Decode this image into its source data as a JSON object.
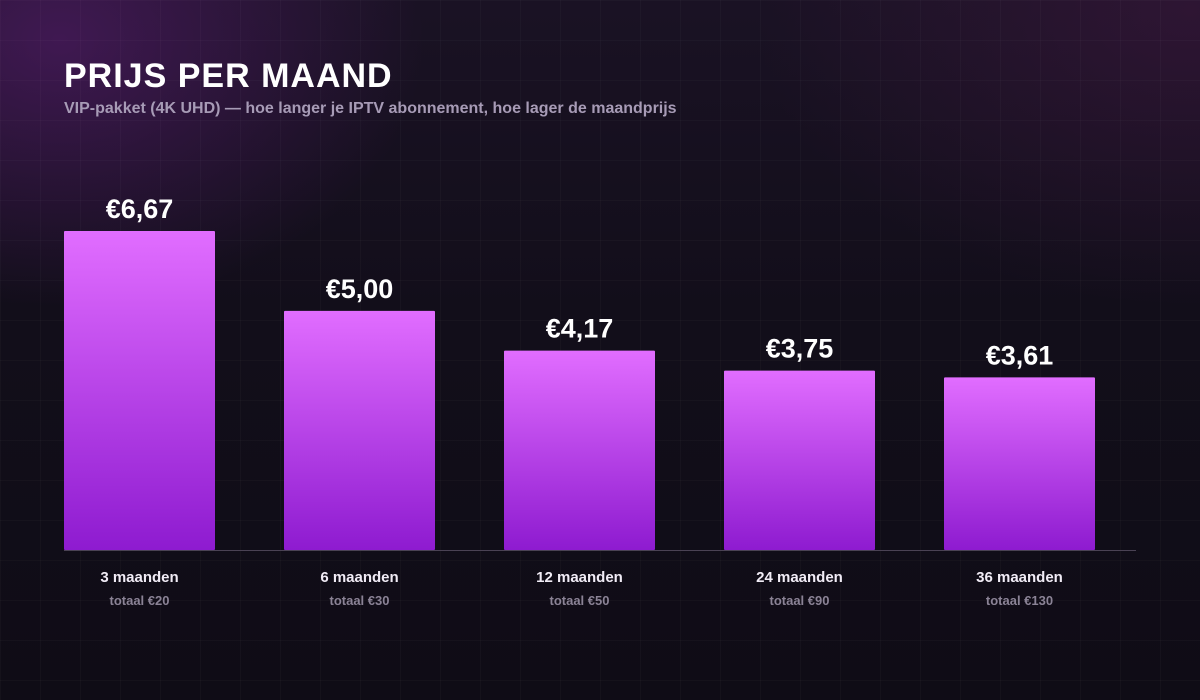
{
  "header": {
    "title": "PRIJS PER MAAND",
    "subtitle": "VIP-pakket (4K UHD) — hoe langer je IPTV abonnement, hoe lager de maandprijs"
  },
  "colors": {
    "bar_top": "#e16dff",
    "bar_bottom": "#8e1bd0",
    "baseline": "#4a4254"
  },
  "chart_data": {
    "type": "bar",
    "title": "PRIJS PER MAAND",
    "subtitle": "VIP-pakket (4K UHD) — hoe langer je IPTV abonnement, hoe lager de maandprijs",
    "xlabel": "",
    "ylabel": "",
    "ylim": [
      0,
      6.67
    ],
    "grid": false,
    "legend": "none",
    "categories": [
      "3 maanden",
      "6 maanden",
      "12 maanden",
      "24 maanden",
      "36 maanden"
    ],
    "values": [
      6.67,
      5.0,
      4.17,
      3.75,
      3.61
    ],
    "value_labels": [
      "€6,67",
      "€5,00",
      "€4,17",
      "€3,75",
      "€3,61"
    ],
    "totals": [
      "totaal €20",
      "totaal €30",
      "totaal €50",
      "totaal €90",
      "totaal €130"
    ]
  }
}
